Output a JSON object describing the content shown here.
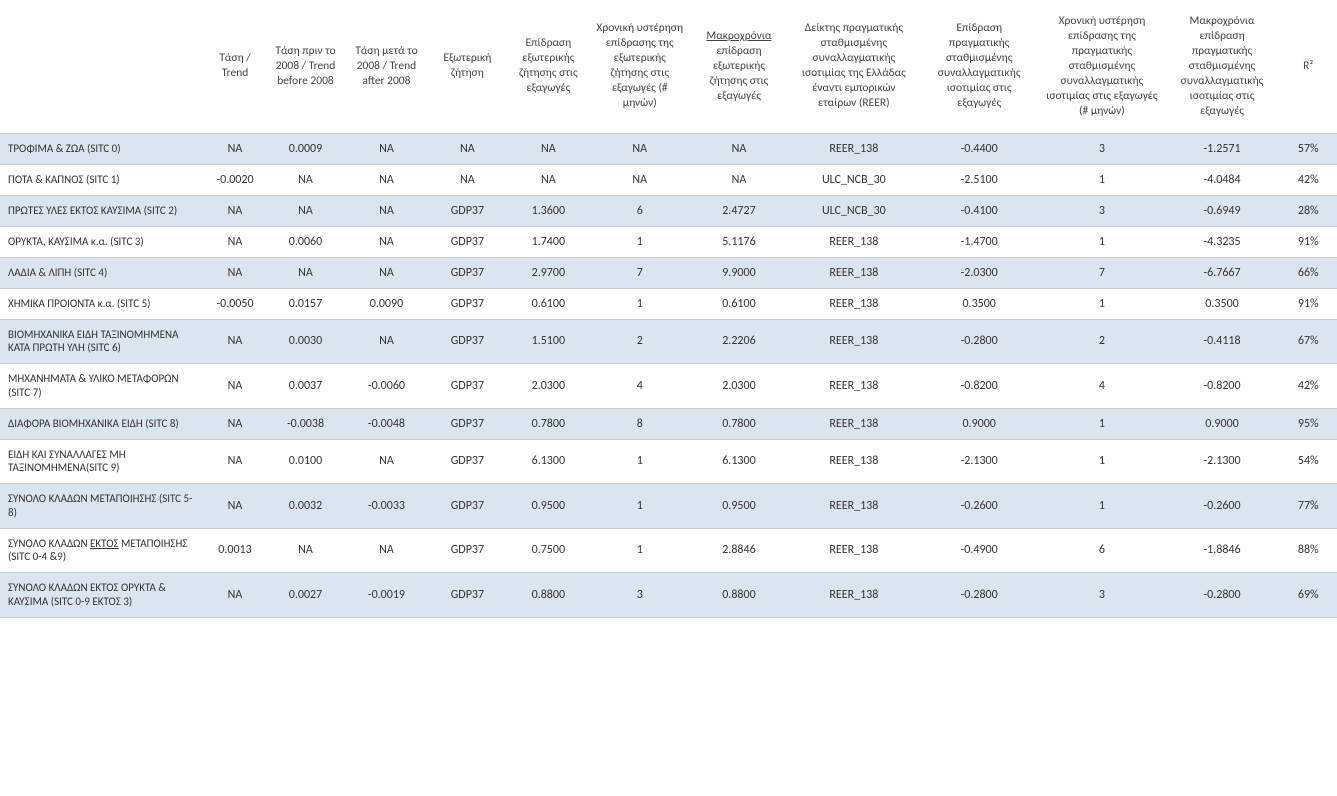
{
  "table": {
    "colors": {
      "row_odd_bg": "#dbe5ef",
      "row_even_bg": "#ffffff",
      "border": "#cccccc",
      "text": "#333333"
    },
    "columns": [
      "",
      "Τάση / Trend",
      "Τάση πριν το 2008 / Trend before 2008",
      "Τάση μετά το 2008 / Trend after 2008",
      "Εξωτερική ζήτηση",
      "Επίδραση εξωτερικής ζήτησης στις εξαγωγές",
      "Χρονική υστέρηση επίδρασης της εξωτερικής ζήτησης στις εξαγωγές (# μηνών)",
      "Μακροχρόνια επίδραση εξωτερικής ζήτησης στις εξαγωγές",
      "Δείκτης πραγματικής σταθμισμένης συναλλαγματικής ισοτιμίας της Ελλάδας έναντι εμπορικών εταίρων (REER)",
      "Επίδραση πραγματικής σταθμισμένης συναλλαγματικής ισοτιμίας στις εξαγωγές",
      "Χρονική υστέρηση επίδρασης της πραγματικής σταθμισμένης συναλλαγματικής ισοτιμίας στις εξαγωγές (# μηνών)",
      "Μακροχρόνια επίδραση πραγματικής σταθμισμένης συναλλαγματικής ισοτιμίας στις εξαγωγές",
      "R²"
    ],
    "header_underline_ektos": "ΕΚΤΟΣ",
    "rows": [
      {
        "label": "ΤΡΟΦΙΜΑ & ΖΩΑ (SITC 0)",
        "cells": [
          "NA",
          "0.0009",
          "NA",
          "NA",
          "NA",
          "NA",
          "NA",
          "REER_138",
          "-0.4400",
          "3",
          "-1.2571",
          "57%"
        ]
      },
      {
        "label": "ΠΟΤΑ & ΚΑΠΝΟΣ (SITC 1)",
        "cells": [
          "-0.0020",
          "NA",
          "NA",
          "NA",
          "NA",
          "NA",
          "NA",
          "ULC_NCB_30",
          "-2.5100",
          "1",
          "-4.0484",
          "42%"
        ]
      },
      {
        "label": "ΠΡΩΤΕΣ ΥΛΕΣ ΕΚΤΟΣ ΚΑΥΣΙΜΑ (SITC 2)",
        "cells": [
          "NA",
          "NA",
          "NA",
          "GDP37",
          "1.3600",
          "6",
          "2.4727",
          "ULC_NCB_30",
          "-0.4100",
          "3",
          "-0.6949",
          "28%"
        ]
      },
      {
        "label": "ΟΡΥΚΤΑ, ΚΑΥΣΙΜΑ κ.α. (SITC 3)",
        "cells": [
          "NA",
          "0.0060",
          "NA",
          "GDP37",
          "1.7400",
          "1",
          "5.1176",
          "REER_138",
          "-1.4700",
          "1",
          "-4.3235",
          "91%"
        ]
      },
      {
        "label": "ΛΑΔΙΑ & ΛΙΠΗ (SITC 4)",
        "cells": [
          "NA",
          "NA",
          "NA",
          "GDP37",
          "2.9700",
          "7",
          "9.9000",
          "REER_138",
          "-2.0300",
          "7",
          "-6.7667",
          "66%"
        ]
      },
      {
        "label": "ΧΗΜΙΚΑ ΠΡΟΙΟΝΤΑ κ.α. (SITC 5)",
        "cells": [
          "-0.0050",
          "0.0157",
          "0.0090",
          "GDP37",
          "0.6100",
          "1",
          "0.6100",
          "REER_138",
          "0.3500",
          "1",
          "0.3500",
          "91%"
        ]
      },
      {
        "label": "ΒΙΟΜΗΧΑΝΙΚΑ ΕΙΔΗ ΤΑΞΙΝΟΜΗΜΕΝΑ ΚΑΤΑ ΠΡΩΤΗ ΥΛΗ (SITC 6)",
        "cells": [
          "NA",
          "0.0030",
          "NA",
          "GDP37",
          "1.5100",
          "2",
          "2.2206",
          "REER_138",
          "-0.2800",
          "2",
          "-0.4118",
          "67%"
        ]
      },
      {
        "label": "ΜΗΧΑΝΗΜΑΤΑ & ΥΛΙΚΟ ΜΕΤΑΦΟΡΩΝ (SITC 7)",
        "cells": [
          "NA",
          "0.0037",
          "-0.0060",
          "GDP37",
          "2.0300",
          "4",
          "2.0300",
          "REER_138",
          "-0.8200",
          "4",
          "-0.8200",
          "42%"
        ]
      },
      {
        "label": "ΔΙΑΦΟΡΑ ΒΙΟΜΗΧΑΝΙΚΑ ΕΙΔΗ (SITC 8)",
        "cells": [
          "NA",
          "-0.0038",
          "-0.0048",
          "GDP37",
          "0.7800",
          "8",
          "0.7800",
          "REER_138",
          "0.9000",
          "1",
          "0.9000",
          "95%"
        ]
      },
      {
        "label": "ΕΙΔΗ ΚΑΙ ΣΥΝΑΛΛΑΓΕΣ ΜΗ ΤΑΞΙΝΟΜΗΜΕΝΑ(SITC 9)",
        "cells": [
          "NA",
          "0.0100",
          "NA",
          "GDP37",
          "6.1300",
          "1",
          "6.1300",
          "REER_138",
          "-2.1300",
          "1",
          "-2.1300",
          "54%"
        ]
      },
      {
        "label": "ΣΥΝΟΛΟ ΚΛΑΔΩΝ ΜΕΤΑΠΟΙΗΣΗΣ  (SITC 5-8)",
        "cells": [
          "NA",
          "0.0032",
          "-0.0033",
          "GDP37",
          "0.9500",
          "1",
          "0.9500",
          "REER_138",
          "-0.2600",
          "1",
          "-0.2600",
          "77%"
        ]
      },
      {
        "label_pre": "ΣΥΝΟΛΟ ΚΛΑΔΩΝ ",
        "label_underline": "ΕΚΤΟΣ",
        "label_post": " ΜΕΤΑΠΟΙΗΣΗΣ (SITC 0-4 &9)",
        "cells": [
          "0.0013",
          "NA",
          "NA",
          "GDP37",
          "0.7500",
          "1",
          "2.8846",
          "REER_138",
          "-0.4900",
          "6",
          "-1.8846",
          "88%"
        ]
      },
      {
        "label": "ΣΥΝΟΛΟ ΚΛΑΔΩΝ ΕΚΤΟΣ ΟΡΥΚΤΑ & ΚΑΥΣΙΜΑ (SITC 0-9 ΕΚΤΟΣ 3)",
        "cells": [
          "NA",
          "0.0027",
          "-0.0019",
          "GDP37",
          "0.8800",
          "3",
          "0.8800",
          "REER_138",
          "-0.2800",
          "3",
          "-0.2800",
          "69%"
        ]
      }
    ]
  }
}
